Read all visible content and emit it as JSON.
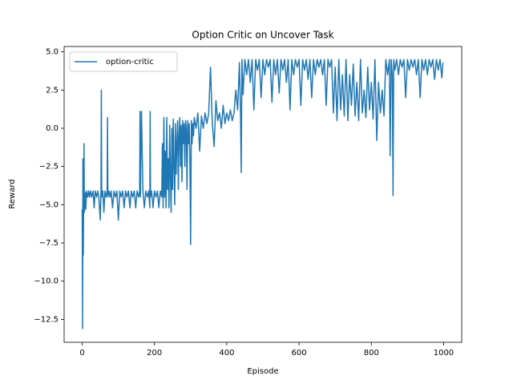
{
  "chart_data": {
    "type": "line",
    "title": "Option Critic on Uncover Task",
    "xlabel": "Episode",
    "ylabel": "Reward",
    "xlim": [
      -50,
      1050
    ],
    "ylim": [
      -14,
      5.35
    ],
    "xticks": [
      0,
      200,
      400,
      600,
      800,
      1000
    ],
    "yticks": [
      {
        "value": -12.5,
        "label": "−12.5"
      },
      {
        "value": -10,
        "label": "−10.0"
      },
      {
        "value": -7.5,
        "label": "−7.5"
      },
      {
        "value": -5,
        "label": "−5.0"
      },
      {
        "value": -2.5,
        "label": "−2.5"
      },
      {
        "value": 0,
        "label": "0.0"
      },
      {
        "value": 2.5,
        "label": "2.5"
      },
      {
        "value": 5,
        "label": "5.0"
      }
    ],
    "legend": "upper left",
    "x": [
      0,
      1,
      2,
      3,
      4,
      5,
      6,
      8,
      10,
      12,
      15,
      18,
      20,
      23,
      26,
      30,
      33,
      36,
      40,
      43,
      46,
      50,
      52,
      53,
      54,
      57,
      60,
      63,
      66,
      69,
      70,
      71,
      74,
      77,
      80,
      84,
      88,
      92,
      96,
      100,
      104,
      108,
      112,
      116,
      120,
      124,
      128,
      132,
      136,
      140,
      144,
      148,
      152,
      156,
      159,
      160,
      161,
      164,
      168,
      172,
      176,
      180,
      184,
      187,
      188,
      189,
      192,
      196,
      200,
      204,
      208,
      212,
      216,
      220,
      222,
      224,
      226,
      228,
      230,
      232,
      234,
      236,
      238,
      240,
      242,
      244,
      246,
      248,
      250,
      252,
      254,
      256,
      258,
      260,
      262,
      264,
      266,
      268,
      270,
      272,
      274,
      276,
      278,
      280,
      282,
      284,
      286,
      288,
      290,
      292,
      294,
      296,
      298,
      300,
      302,
      304,
      306,
      308,
      310,
      315,
      320,
      325,
      330,
      335,
      340,
      345,
      350,
      355,
      360,
      365,
      370,
      375,
      380,
      385,
      390,
      395,
      400,
      405,
      410,
      415,
      420,
      425,
      430,
      435,
      438,
      440,
      442,
      445,
      450,
      455,
      460,
      465,
      470,
      475,
      480,
      485,
      490,
      495,
      500,
      505,
      510,
      515,
      520,
      525,
      530,
      535,
      540,
      545,
      550,
      555,
      560,
      565,
      570,
      575,
      580,
      585,
      590,
      595,
      600,
      605,
      610,
      615,
      620,
      625,
      630,
      635,
      640,
      645,
      650,
      655,
      660,
      665,
      670,
      675,
      680,
      685,
      690,
      695,
      700,
      705,
      710,
      715,
      720,
      725,
      730,
      735,
      740,
      745,
      750,
      755,
      760,
      765,
      770,
      775,
      780,
      785,
      790,
      795,
      800,
      805,
      810,
      815,
      820,
      825,
      830,
      835,
      840,
      845,
      850,
      852,
      855,
      858,
      860,
      862,
      865,
      870,
      875,
      880,
      885,
      890,
      895,
      900,
      905,
      910,
      915,
      920,
      925,
      930,
      935,
      940,
      945,
      950,
      955,
      960,
      965,
      970,
      975,
      980,
      985,
      990,
      995,
      998
    ],
    "series": [
      {
        "name": "option-critic",
        "color": "#1f77b4",
        "values": [
          -5.3,
          -13.1,
          -2,
          -8.3,
          -5,
          -1,
          -5.5,
          -4.2,
          -5.3,
          -4.1,
          -4.5,
          -4.1,
          -4.5,
          -4.1,
          -4.5,
          -4.1,
          -5.2,
          -4.1,
          -4.5,
          -4.1,
          -4.5,
          -6,
          -4.1,
          2.5,
          -4.5,
          -4.1,
          -5.5,
          -4.1,
          -4.5,
          -4.1,
          0.7,
          -4.5,
          -4.1,
          -4.5,
          -4.1,
          -5.2,
          -4.1,
          -4.5,
          -4.1,
          -6,
          -4.1,
          -4.5,
          -4.1,
          -5.2,
          -4.1,
          -4.5,
          -4.1,
          -5.2,
          -4.1,
          -4.5,
          -4.1,
          -5.2,
          -4.1,
          -4.5,
          -4.1,
          1.1,
          -4.5,
          1.1,
          -4.1,
          -5.2,
          -4.1,
          -4.5,
          -4.1,
          -5.2,
          1.1,
          -4.5,
          -4.1,
          -5.2,
          -4.1,
          -4.5,
          -4.1,
          -5.2,
          -4.1,
          -4.5,
          -1,
          -5.2,
          0.7,
          -4.5,
          -1.5,
          -5.2,
          0.7,
          -4,
          -2,
          -5.2,
          0.2,
          -3,
          -5.5,
          0,
          -4,
          0.6,
          -2.5,
          -5,
          0.3,
          -3,
          -1,
          0.5,
          -4,
          -0.5,
          0.7,
          -2.5,
          0.2,
          -3.5,
          0.5,
          -1,
          0.3,
          -2.5,
          0.5,
          0,
          -4,
          0.5,
          -1,
          0.3,
          -2,
          -7.6,
          0.5,
          -1,
          0.3,
          -0.5,
          0.7,
          0,
          1,
          -1.5,
          0.8,
          0,
          1,
          0.3,
          1,
          4,
          0.3,
          -1.2,
          1.8,
          0.5,
          1,
          0,
          1.5,
          0.3,
          1,
          0.5,
          1.2,
          0.5,
          1,
          2.5,
          1.2,
          4.3,
          1,
          -2.9,
          4.5,
          2.2,
          4.5,
          3.5,
          4.5,
          3,
          4.5,
          1.2,
          4.5,
          3.8,
          4.5,
          2,
          4.5,
          3.5,
          4.5,
          4,
          4.5,
          1.7,
          4.5,
          3.5,
          4.5,
          2.3,
          4.5,
          3.8,
          4.5,
          3,
          4.5,
          1.2,
          4.5,
          3.5,
          4.5,
          4,
          4.5,
          1.5,
          4.5,
          3.8,
          4.5,
          3.2,
          4.5,
          2,
          4.5,
          3.5,
          4.5,
          4,
          4.5,
          3.5,
          4.5,
          1.5,
          4.5,
          4,
          4.5,
          1,
          4,
          0.5,
          4.5,
          1.2,
          3.5,
          0.8,
          4.5,
          0.5,
          3.5,
          1.5,
          4.2,
          0.8,
          3,
          0.5,
          4.5,
          1,
          2.5,
          0.7,
          4,
          1.2,
          3,
          0.6,
          4.5,
          -0.8,
          3,
          1,
          2.5,
          0.8,
          4.5,
          3.5,
          4.5,
          -1.8,
          4.5,
          3.5,
          -4.4,
          4.5,
          3.8,
          4.5,
          3.5,
          4.5,
          4,
          4.5,
          2,
          4.5,
          3.8,
          4.5,
          4,
          4.5,
          3.5,
          4.5,
          2,
          4.5,
          3.8,
          4.5,
          3.5,
          4.5,
          4,
          4.5,
          3.2,
          4.5,
          3.8,
          4.5,
          3.3,
          4.3
        ]
      }
    ]
  }
}
